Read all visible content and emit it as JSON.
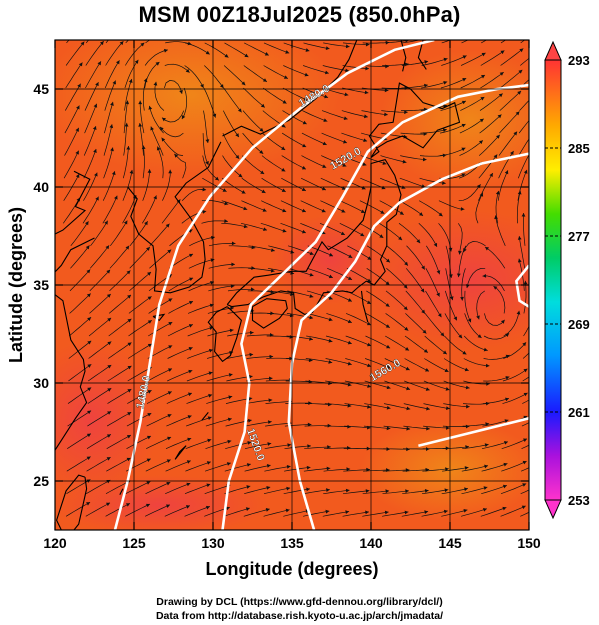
{
  "title": "MSM 00Z18Jul2025 (850.0hPa)",
  "x_axis": {
    "label": "Longitude (degrees)",
    "range": [
      120,
      150
    ],
    "ticks": [
      120,
      125,
      130,
      135,
      140,
      145,
      150
    ]
  },
  "y_axis": {
    "label": "Latitude  (degrees)",
    "range": [
      22.5,
      47.5
    ],
    "ticks": [
      25,
      30,
      35,
      40,
      45
    ]
  },
  "colorbar": {
    "range": [
      253,
      293
    ],
    "ticks": [
      253,
      261,
      269,
      277,
      285,
      293
    ]
  },
  "contours": [
    {
      "value": "1480.0",
      "label_pos": [
        [
          136.5,
          44.5
        ],
        [
          125.8,
          29.5
        ]
      ]
    },
    {
      "value": "1520.0",
      "label_pos": [
        [
          138.5,
          41.3
        ],
        [
          132.5,
          26.8
        ]
      ]
    },
    {
      "value": "1560.0",
      "label_pos": [
        [
          141,
          30.5
        ]
      ]
    }
  ],
  "credits": [
    "Drawing by DCL (https://www.gfd-dennou.org/library/dcl/)",
    "Data from http://database.rish.kyoto-u.ac.jp/arch/jmadata/"
  ],
  "colors": {
    "field_base": "#f25a1e",
    "field_warm": "#f0453a",
    "field_cool": "#f07a1a",
    "contour": "#ffffff",
    "coast": "#000000"
  }
}
